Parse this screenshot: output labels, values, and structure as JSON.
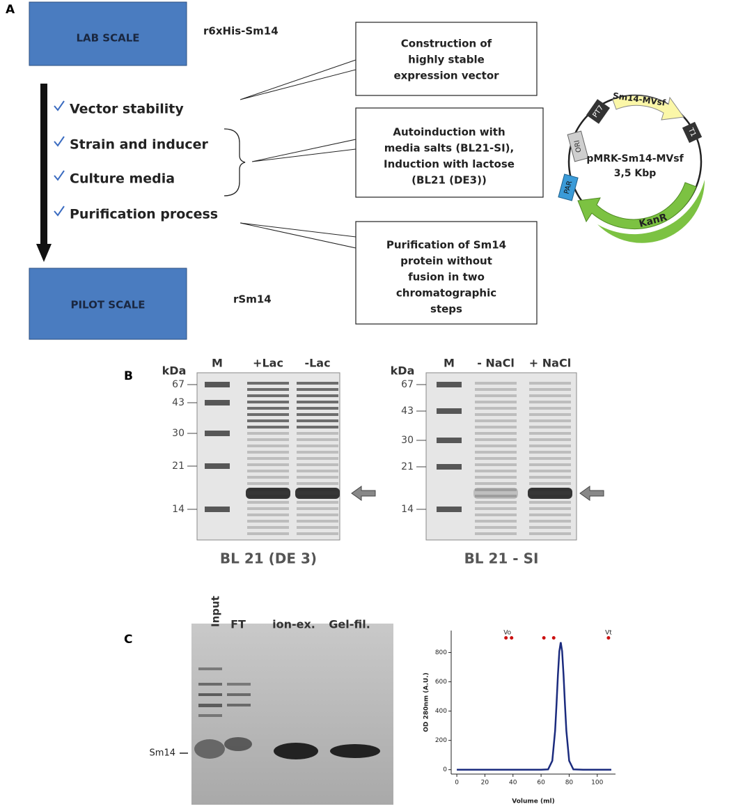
{
  "panel_a": {
    "label": "A",
    "lab_scale": "LAB SCALE",
    "lab_construct": "r6xHis-Sm14",
    "pilot_scale": "PILOT SCALE",
    "pilot_construct": "rSm14",
    "steps": [
      "Vector stability",
      "Strain and inducer",
      "Culture media",
      "Purification process"
    ],
    "boxes": [
      [
        "Construction of",
        "highly stable",
        "expression vector"
      ],
      [
        "Autoinduction with",
        "media salts (BL21-SI),",
        "Induction with lactose",
        "(BL21 (DE3))"
      ],
      [
        "Purification of Sm14",
        "protein without",
        "fusion in two",
        "chromatographic",
        "steps"
      ]
    ],
    "plasmid": {
      "name": "pMRK-Sm14-MVsf",
      "size": "3,5 Kbp",
      "insert": "Sm14-MVsf",
      "terminator": "T1",
      "resistance": "KanR",
      "par": "PAR",
      "ori": "ORI",
      "promoter": "PT7"
    }
  },
  "panel_b": {
    "label": "B",
    "gels": [
      {
        "unit": "kDa",
        "lanes": [
          "M",
          "+Lac",
          "-Lac"
        ],
        "markers": [
          "67",
          "43",
          "30",
          "21",
          "14"
        ],
        "caption": "BL 21 (DE 3)"
      },
      {
        "unit": "kDa",
        "lanes": [
          "M",
          "- NaCl",
          "+ NaCl"
        ],
        "markers": [
          "67",
          "43",
          "30",
          "21",
          "14"
        ],
        "caption": "BL 21 - SI"
      }
    ]
  },
  "panel_c": {
    "label": "C",
    "lanes": [
      "Input",
      "FT",
      "ion-ex.",
      "Gel-fil."
    ],
    "band": "Sm14"
  },
  "chart_data": {
    "type": "line",
    "xlabel": "Volume (ml)",
    "ylabel": "OD 280nm (A.U.)",
    "x": [
      0,
      10,
      20,
      30,
      40,
      50,
      60,
      65,
      68,
      70,
      71,
      72,
      73,
      74,
      75,
      76,
      77,
      78,
      80,
      83,
      90,
      100,
      110
    ],
    "values": [
      0,
      0,
      0,
      0,
      0,
      0,
      0,
      2,
      61,
      266,
      447,
      647,
      808,
      870,
      808,
      647,
      447,
      266,
      61,
      2,
      0,
      0,
      0
    ],
    "color": "#1b2b7e",
    "xlim": [
      -4,
      113
    ],
    "ylim": [
      -30,
      950
    ],
    "xticks": [
      0,
      20,
      40,
      60,
      80,
      100
    ],
    "yticks": [
      0,
      200,
      400,
      600,
      800
    ],
    "markers": {
      "x": [
        35,
        39,
        62,
        69,
        108
      ],
      "y": [
        900,
        900,
        900,
        900,
        900
      ],
      "color": "#cc1111"
    },
    "annotations": [
      {
        "text": "Vo",
        "x": 36,
        "y": 935
      },
      {
        "text": "Vt",
        "x": 108,
        "y": 935
      }
    ]
  }
}
